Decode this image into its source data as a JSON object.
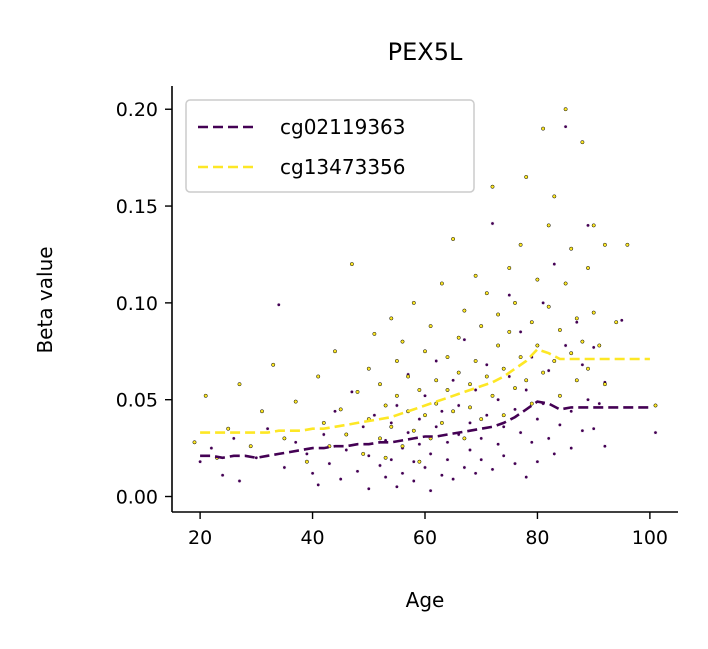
{
  "chart_data": {
    "type": "scatter",
    "title": "PEX5L",
    "xlabel": "Age",
    "ylabel": "Beta value",
    "xlim": [
      15,
      105
    ],
    "ylim": [
      -0.008,
      0.212
    ],
    "xticks": [
      20,
      40,
      60,
      80,
      100
    ],
    "yticks": [
      0.0,
      0.05,
      0.1,
      0.15,
      0.2
    ],
    "xtick_labels": [
      "20",
      "40",
      "60",
      "80",
      "100"
    ],
    "ytick_labels": [
      "0.00",
      "0.05",
      "0.10",
      "0.15",
      "0.20"
    ],
    "grid": false,
    "legend_position": "top-left",
    "series": [
      {
        "name": "cg02119363",
        "color": "#440154",
        "line_style": "dashed",
        "trend": {
          "x": [
            20,
            22,
            24,
            26,
            28,
            30,
            32,
            34,
            36,
            38,
            40,
            42,
            44,
            46,
            48,
            50,
            52,
            54,
            56,
            58,
            60,
            62,
            64,
            66,
            68,
            70,
            72,
            74,
            76,
            78,
            80,
            82,
            84,
            86,
            88,
            90,
            92,
            94,
            96,
            98,
            100
          ],
          "y": [
            0.021,
            0.021,
            0.02,
            0.021,
            0.021,
            0.02,
            0.021,
            0.022,
            0.023,
            0.024,
            0.025,
            0.025,
            0.026,
            0.026,
            0.027,
            0.027,
            0.028,
            0.028,
            0.029,
            0.03,
            0.031,
            0.031,
            0.032,
            0.033,
            0.034,
            0.035,
            0.036,
            0.038,
            0.041,
            0.045,
            0.049,
            0.048,
            0.045,
            0.046,
            0.046,
            0.046,
            0.046,
            0.046,
            0.046,
            0.046,
            0.046
          ]
        },
        "points": [
          [
            20,
            0.018
          ],
          [
            22,
            0.025
          ],
          [
            24,
            0.011
          ],
          [
            26,
            0.03
          ],
          [
            27,
            0.008
          ],
          [
            30,
            0.02
          ],
          [
            32,
            0.035
          ],
          [
            34,
            0.099
          ],
          [
            35,
            0.015
          ],
          [
            37,
            0.028
          ],
          [
            39,
            0.022
          ],
          [
            40,
            0.012
          ],
          [
            41,
            0.006
          ],
          [
            42,
            0.032
          ],
          [
            43,
            0.017
          ],
          [
            44,
            0.044
          ],
          [
            45,
            0.009
          ],
          [
            46,
            0.024
          ],
          [
            47,
            0.054
          ],
          [
            48,
            0.013
          ],
          [
            49,
            0.036
          ],
          [
            50,
            0.004
          ],
          [
            50,
            0.021
          ],
          [
            51,
            0.042
          ],
          [
            52,
            0.016
          ],
          [
            52,
            0.058
          ],
          [
            53,
            0.01
          ],
          [
            53,
            0.029
          ],
          [
            54,
            0.038
          ],
          [
            54,
            0.019
          ],
          [
            55,
            0.005
          ],
          [
            55,
            0.047
          ],
          [
            56,
            0.025
          ],
          [
            56,
            0.012
          ],
          [
            57,
            0.063
          ],
          [
            57,
            0.033
          ],
          [
            58,
            0.018
          ],
          [
            58,
            0.008
          ],
          [
            59,
            0.04
          ],
          [
            59,
            0.027
          ],
          [
            60,
            0.015
          ],
          [
            60,
            0.052
          ],
          [
            61,
            0.022
          ],
          [
            61,
            0.003
          ],
          [
            62,
            0.036
          ],
          [
            62,
            0.07
          ],
          [
            63,
            0.011
          ],
          [
            63,
            0.044
          ],
          [
            64,
            0.028
          ],
          [
            64,
            0.019
          ],
          [
            65,
            0.06
          ],
          [
            65,
            0.009
          ],
          [
            66,
            0.032
          ],
          [
            66,
            0.047
          ],
          [
            67,
            0.015
          ],
          [
            67,
            0.081
          ],
          [
            68,
            0.024
          ],
          [
            68,
            0.038
          ],
          [
            69,
            0.012
          ],
          [
            69,
            0.055
          ],
          [
            70,
            0.03
          ],
          [
            70,
            0.019
          ],
          [
            71,
            0.068
          ],
          [
            71,
            0.042
          ],
          [
            72,
            0.014
          ],
          [
            72,
            0.141
          ],
          [
            73,
            0.027
          ],
          [
            73,
            0.05
          ],
          [
            74,
            0.036
          ],
          [
            74,
            0.021
          ],
          [
            75,
            0.104
          ],
          [
            75,
            0.062
          ],
          [
            76,
            0.017
          ],
          [
            76,
            0.045
          ],
          [
            77,
            0.033
          ],
          [
            77,
            0.085
          ],
          [
            78,
            0.01
          ],
          [
            78,
            0.055
          ],
          [
            79,
            0.028
          ],
          [
            79,
            0.072
          ],
          [
            80,
            0.04
          ],
          [
            80,
            0.018
          ],
          [
            81,
            0.1
          ],
          [
            81,
            0.048
          ],
          [
            82,
            0.03
          ],
          [
            82,
            0.065
          ],
          [
            83,
            0.022
          ],
          [
            83,
            0.12
          ],
          [
            84,
            0.052
          ],
          [
            84,
            0.037
          ],
          [
            85,
            0.191
          ],
          [
            85,
            0.078
          ],
          [
            86,
            0.044
          ],
          [
            86,
            0.025
          ],
          [
            87,
            0.09
          ],
          [
            87,
            0.06
          ],
          [
            88,
            0.034
          ],
          [
            88,
            0.068
          ],
          [
            89,
            0.14
          ],
          [
            89,
            0.05
          ],
          [
            90,
            0.035
          ],
          [
            90,
            0.077
          ],
          [
            91,
            0.048
          ],
          [
            92,
            0.026
          ],
          [
            92,
            0.059
          ],
          [
            95,
            0.091
          ],
          [
            101,
            0.033
          ]
        ]
      },
      {
        "name": "cg13473356",
        "color": "#fde725",
        "line_style": "dashed",
        "trend": {
          "x": [
            20,
            22,
            24,
            26,
            28,
            30,
            32,
            34,
            36,
            38,
            40,
            42,
            44,
            46,
            48,
            50,
            52,
            54,
            56,
            58,
            60,
            62,
            64,
            66,
            68,
            70,
            72,
            74,
            76,
            78,
            80,
            82,
            84,
            86,
            88,
            90,
            92,
            94,
            96,
            98,
            100
          ],
          "y": [
            0.033,
            0.033,
            0.033,
            0.033,
            0.033,
            0.033,
            0.033,
            0.034,
            0.034,
            0.034,
            0.035,
            0.035,
            0.036,
            0.037,
            0.038,
            0.039,
            0.04,
            0.041,
            0.043,
            0.045,
            0.047,
            0.049,
            0.051,
            0.053,
            0.055,
            0.057,
            0.059,
            0.062,
            0.066,
            0.07,
            0.076,
            0.074,
            0.071,
            0.071,
            0.071,
            0.071,
            0.071,
            0.071,
            0.071,
            0.071,
            0.071
          ]
        },
        "points": [
          [
            19,
            0.028
          ],
          [
            21,
            0.052
          ],
          [
            23,
            0.02
          ],
          [
            25,
            0.035
          ],
          [
            27,
            0.058
          ],
          [
            29,
            0.026
          ],
          [
            31,
            0.044
          ],
          [
            33,
            0.068
          ],
          [
            35,
            0.03
          ],
          [
            37,
            0.049
          ],
          [
            39,
            0.018
          ],
          [
            41,
            0.062
          ],
          [
            42,
            0.038
          ],
          [
            43,
            0.026
          ],
          [
            44,
            0.075
          ],
          [
            45,
            0.045
          ],
          [
            46,
            0.032
          ],
          [
            47,
            0.12
          ],
          [
            48,
            0.054
          ],
          [
            49,
            0.022
          ],
          [
            50,
            0.066
          ],
          [
            50,
            0.04
          ],
          [
            51,
            0.084
          ],
          [
            52,
            0.03
          ],
          [
            52,
            0.058
          ],
          [
            53,
            0.047
          ],
          [
            53,
            0.02
          ],
          [
            54,
            0.092
          ],
          [
            54,
            0.036
          ],
          [
            55,
            0.07
          ],
          [
            55,
            0.052
          ],
          [
            56,
            0.026
          ],
          [
            56,
            0.08
          ],
          [
            57,
            0.044
          ],
          [
            57,
            0.062
          ],
          [
            58,
            0.034
          ],
          [
            58,
            0.1
          ],
          [
            59,
            0.055
          ],
          [
            59,
            0.018
          ],
          [
            60,
            0.075
          ],
          [
            60,
            0.042
          ],
          [
            61,
            0.088
          ],
          [
            61,
            0.03
          ],
          [
            62,
            0.06
          ],
          [
            62,
            0.048
          ],
          [
            63,
            0.11
          ],
          [
            63,
            0.038
          ],
          [
            64,
            0.072
          ],
          [
            64,
            0.055
          ],
          [
            65,
            0.133
          ],
          [
            65,
            0.044
          ],
          [
            66,
            0.082
          ],
          [
            66,
            0.064
          ],
          [
            67,
            0.03
          ],
          [
            67,
            0.096
          ],
          [
            68,
            0.058
          ],
          [
            68,
            0.046
          ],
          [
            69,
            0.114
          ],
          [
            69,
            0.07
          ],
          [
            70,
            0.04
          ],
          [
            70,
            0.088
          ],
          [
            71,
            0.062
          ],
          [
            71,
            0.105
          ],
          [
            72,
            0.16
          ],
          [
            72,
            0.052
          ],
          [
            73,
            0.078
          ],
          [
            73,
            0.094
          ],
          [
            74,
            0.066
          ],
          [
            74,
            0.042
          ],
          [
            75,
            0.118
          ],
          [
            75,
            0.085
          ],
          [
            76,
            0.056
          ],
          [
            76,
            0.1
          ],
          [
            77,
            0.072
          ],
          [
            77,
            0.13
          ],
          [
            78,
            0.165
          ],
          [
            78,
            0.06
          ],
          [
            79,
            0.09
          ],
          [
            79,
            0.048
          ],
          [
            80,
            0.112
          ],
          [
            80,
            0.078
          ],
          [
            81,
            0.19
          ],
          [
            81,
            0.064
          ],
          [
            82,
            0.098
          ],
          [
            82,
            0.14
          ],
          [
            83,
            0.07
          ],
          [
            83,
            0.155
          ],
          [
            84,
            0.086
          ],
          [
            84,
            0.052
          ],
          [
            85,
            0.2
          ],
          [
            85,
            0.11
          ],
          [
            86,
            0.074
          ],
          [
            86,
            0.128
          ],
          [
            87,
            0.092
          ],
          [
            87,
            0.06
          ],
          [
            88,
            0.183
          ],
          [
            88,
            0.08
          ],
          [
            89,
            0.118
          ],
          [
            89,
            0.066
          ],
          [
            90,
            0.095
          ],
          [
            90,
            0.14
          ],
          [
            91,
            0.078
          ],
          [
            92,
            0.13
          ],
          [
            92,
            0.058
          ],
          [
            94,
            0.09
          ],
          [
            96,
            0.13
          ],
          [
            101,
            0.047
          ]
        ]
      }
    ]
  }
}
